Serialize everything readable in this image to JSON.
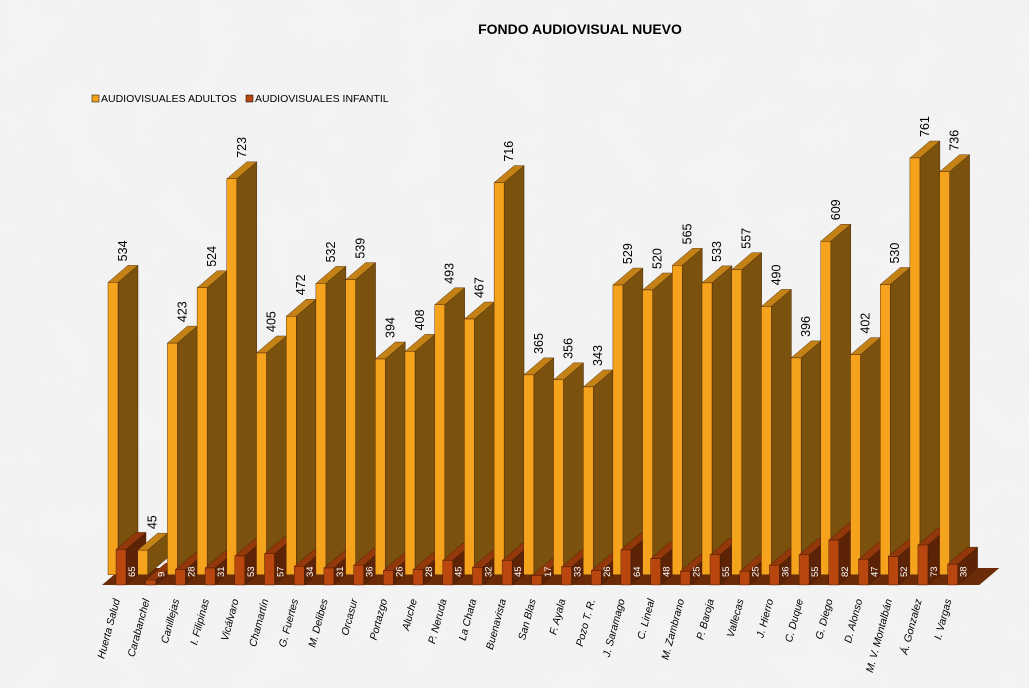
{
  "chart_data": {
    "type": "bar3d",
    "title": "FONDO AUDIOVISUAL NUEVO",
    "categories": [
      "Huerta Salud",
      "Carabanchel",
      "Canillejas",
      "I. Filipinas",
      "Vicálvaro",
      "Chamartín",
      "G. Fuertes",
      "M. Delibes",
      "Orcasur",
      "Portazgo",
      "Aluche",
      "P. Neruda",
      "La Chata",
      "Buenavista",
      "San Blas",
      "F. Ayala",
      "Pozo T. R.",
      "J. Saramago",
      "C. Lineal",
      "M. Zambrano",
      "P. Baroja",
      "Vallecas",
      "J. Hierro",
      "C. Duque",
      "G. Diego",
      "D. Alonso",
      "M. V. Montalbán",
      "Á. Gonzalez",
      "I. Vargas"
    ],
    "series": [
      {
        "name": "AUDIOVISUALES ADULTOS",
        "color": "#f5a21c",
        "values": [
          534,
          45,
          423,
          524,
          723,
          405,
          472,
          532,
          539,
          394,
          408,
          493,
          467,
          716,
          365,
          356,
          343,
          529,
          520,
          565,
          533,
          557,
          490,
          396,
          609,
          402,
          530,
          761,
          736
        ]
      },
      {
        "name": "AUDIOVISUALES INFANTIL",
        "color": "#b8460e",
        "values": [
          65,
          9,
          28,
          31,
          53,
          57,
          34,
          31,
          36,
          26,
          28,
          45,
          32,
          45,
          17,
          33,
          26,
          64,
          48,
          25,
          55,
          25,
          36,
          55,
          82,
          47,
          52,
          73,
          38
        ]
      }
    ],
    "legend": "top-left"
  }
}
